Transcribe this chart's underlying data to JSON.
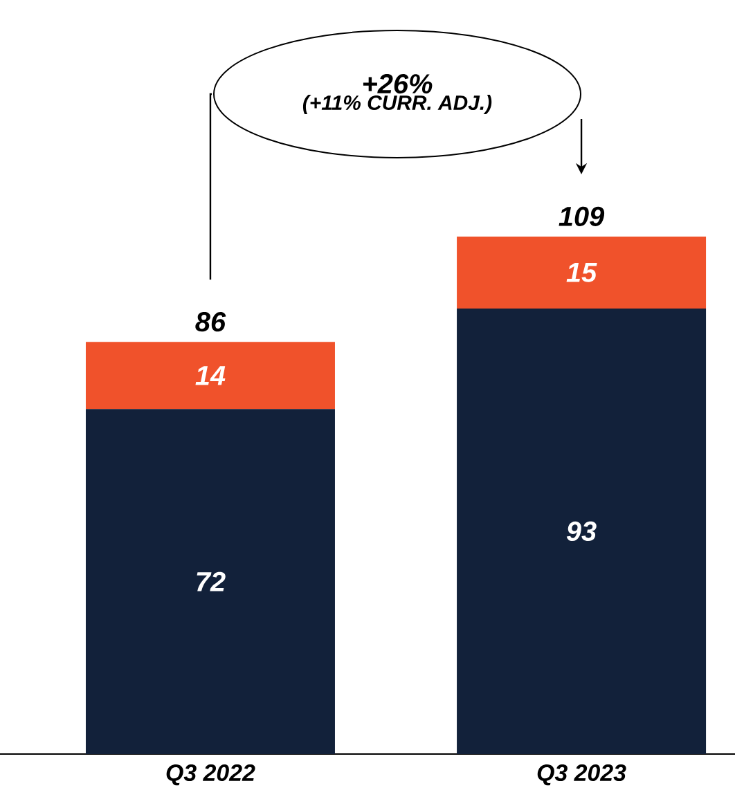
{
  "chart_data": {
    "type": "bar",
    "stacked": true,
    "categories": [
      "Q3 2022",
      "Q3 2023"
    ],
    "series": [
      {
        "color": "#12213a",
        "values": [
          72,
          93
        ]
      },
      {
        "color": "#f0522b",
        "values": [
          14,
          15
        ]
      }
    ],
    "data_labels": true,
    "totals": [
      "86",
      "109"
    ],
    "annotations": [
      "+26%",
      "(+11% CURR. ADJ.)"
    ]
  }
}
